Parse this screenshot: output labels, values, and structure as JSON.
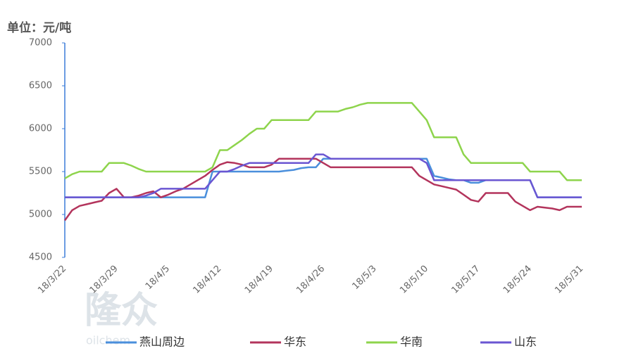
{
  "chart_data": {
    "type": "line",
    "title": "单位：元/吨",
    "watermark": "隆众",
    "watermark_sub": "oilchem",
    "categories": [
      "18/3/22",
      null,
      null,
      null,
      null,
      null,
      null,
      "18/3/29",
      null,
      null,
      null,
      null,
      null,
      null,
      "18/4/5",
      null,
      null,
      null,
      null,
      null,
      null,
      "18/4/12",
      null,
      null,
      null,
      null,
      null,
      null,
      "18/4/19",
      null,
      null,
      null,
      null,
      null,
      null,
      "18/4/26",
      null,
      null,
      null,
      null,
      null,
      null,
      "18/5/3",
      null,
      null,
      null,
      null,
      null,
      null,
      "18/5/10",
      null,
      null,
      null,
      null,
      null,
      null,
      "18/5/17",
      null,
      null,
      null,
      null,
      null,
      null,
      "18/5/24",
      null,
      null,
      null,
      null,
      null,
      null,
      "18/5/31"
    ],
    "series": [
      {
        "name": "燕山周边",
        "color": "#4a8fdc",
        "values": [
          5200,
          5200,
          5200,
          5200,
          5200,
          5200,
          5200,
          5200,
          5200,
          5200,
          5200,
          5200,
          5200,
          5200,
          5200,
          5200,
          5200,
          5200,
          5200,
          5200,
          5500,
          5500,
          5500,
          5500,
          5500,
          5500,
          5500,
          5500,
          5500,
          5500,
          5510,
          5520,
          5540,
          5550,
          5550,
          5650,
          5650,
          5650,
          5650,
          5650,
          5650,
          5650,
          5650,
          5650,
          5650,
          5650,
          5650,
          5650,
          5650,
          5650,
          5450,
          5430,
          5410,
          5400,
          5400,
          5370,
          5370,
          5400,
          5400,
          5400,
          5400,
          5400,
          5400,
          5400,
          5200,
          5200,
          5200,
          5200,
          5200,
          5200,
          5200
        ]
      },
      {
        "name": "华东",
        "color": "#b3345c",
        "values": [
          4930,
          5050,
          5100,
          5120,
          5140,
          5160,
          5250,
          5300,
          5200,
          5200,
          5220,
          5250,
          5270,
          5200,
          5230,
          5270,
          5300,
          5350,
          5400,
          5450,
          5520,
          5580,
          5610,
          5600,
          5580,
          5550,
          5550,
          5550,
          5580,
          5650,
          5650,
          5650,
          5650,
          5650,
          5650,
          5600,
          5550,
          5550,
          5550,
          5550,
          5550,
          5550,
          5550,
          5550,
          5550,
          5550,
          5550,
          5550,
          5450,
          5400,
          5350,
          5330,
          5310,
          5290,
          5230,
          5170,
          5150,
          5250,
          5250,
          5250,
          5250,
          5150,
          5100,
          5050,
          5090,
          5080,
          5070,
          5050,
          5090,
          5090,
          5090
        ]
      },
      {
        "name": "华南",
        "color": "#8ed44c",
        "values": [
          5420,
          5470,
          5500,
          5500,
          5500,
          5500,
          5600,
          5600,
          5600,
          5570,
          5530,
          5500,
          5500,
          5500,
          5500,
          5500,
          5500,
          5500,
          5500,
          5500,
          5550,
          5750,
          5750,
          5810,
          5870,
          5940,
          6000,
          6000,
          6100,
          6100,
          6100,
          6100,
          6100,
          6100,
          6200,
          6200,
          6200,
          6200,
          6230,
          6250,
          6280,
          6300,
          6300,
          6300,
          6300,
          6300,
          6300,
          6300,
          6200,
          6100,
          5900,
          5900,
          5900,
          5900,
          5700,
          5600,
          5600,
          5600,
          5600,
          5600,
          5600,
          5600,
          5600,
          5500,
          5500,
          5500,
          5500,
          5500,
          5400,
          5400,
          5400
        ]
      },
      {
        "name": "山东",
        "color": "#6a56d2",
        "values": [
          5200,
          5200,
          5200,
          5200,
          5200,
          5200,
          5200,
          5200,
          5200,
          5200,
          5200,
          5220,
          5250,
          5300,
          5300,
          5300,
          5300,
          5300,
          5300,
          5300,
          5400,
          5500,
          5500,
          5530,
          5570,
          5600,
          5600,
          5600,
          5600,
          5600,
          5600,
          5600,
          5600,
          5600,
          5700,
          5700,
          5650,
          5650,
          5650,
          5650,
          5650,
          5650,
          5650,
          5650,
          5650,
          5650,
          5650,
          5650,
          5650,
          5600,
          5400,
          5400,
          5400,
          5400,
          5400,
          5400,
          5400,
          5400,
          5400,
          5400,
          5400,
          5400,
          5400,
          5400,
          5200,
          5200,
          5200,
          5200,
          5200,
          5200,
          5200
        ]
      }
    ],
    "ylim": [
      4500,
      7000
    ],
    "yticks": [
      4500,
      5000,
      5500,
      6000,
      6500,
      7000
    ],
    "grid": false,
    "legend": "bottom"
  }
}
